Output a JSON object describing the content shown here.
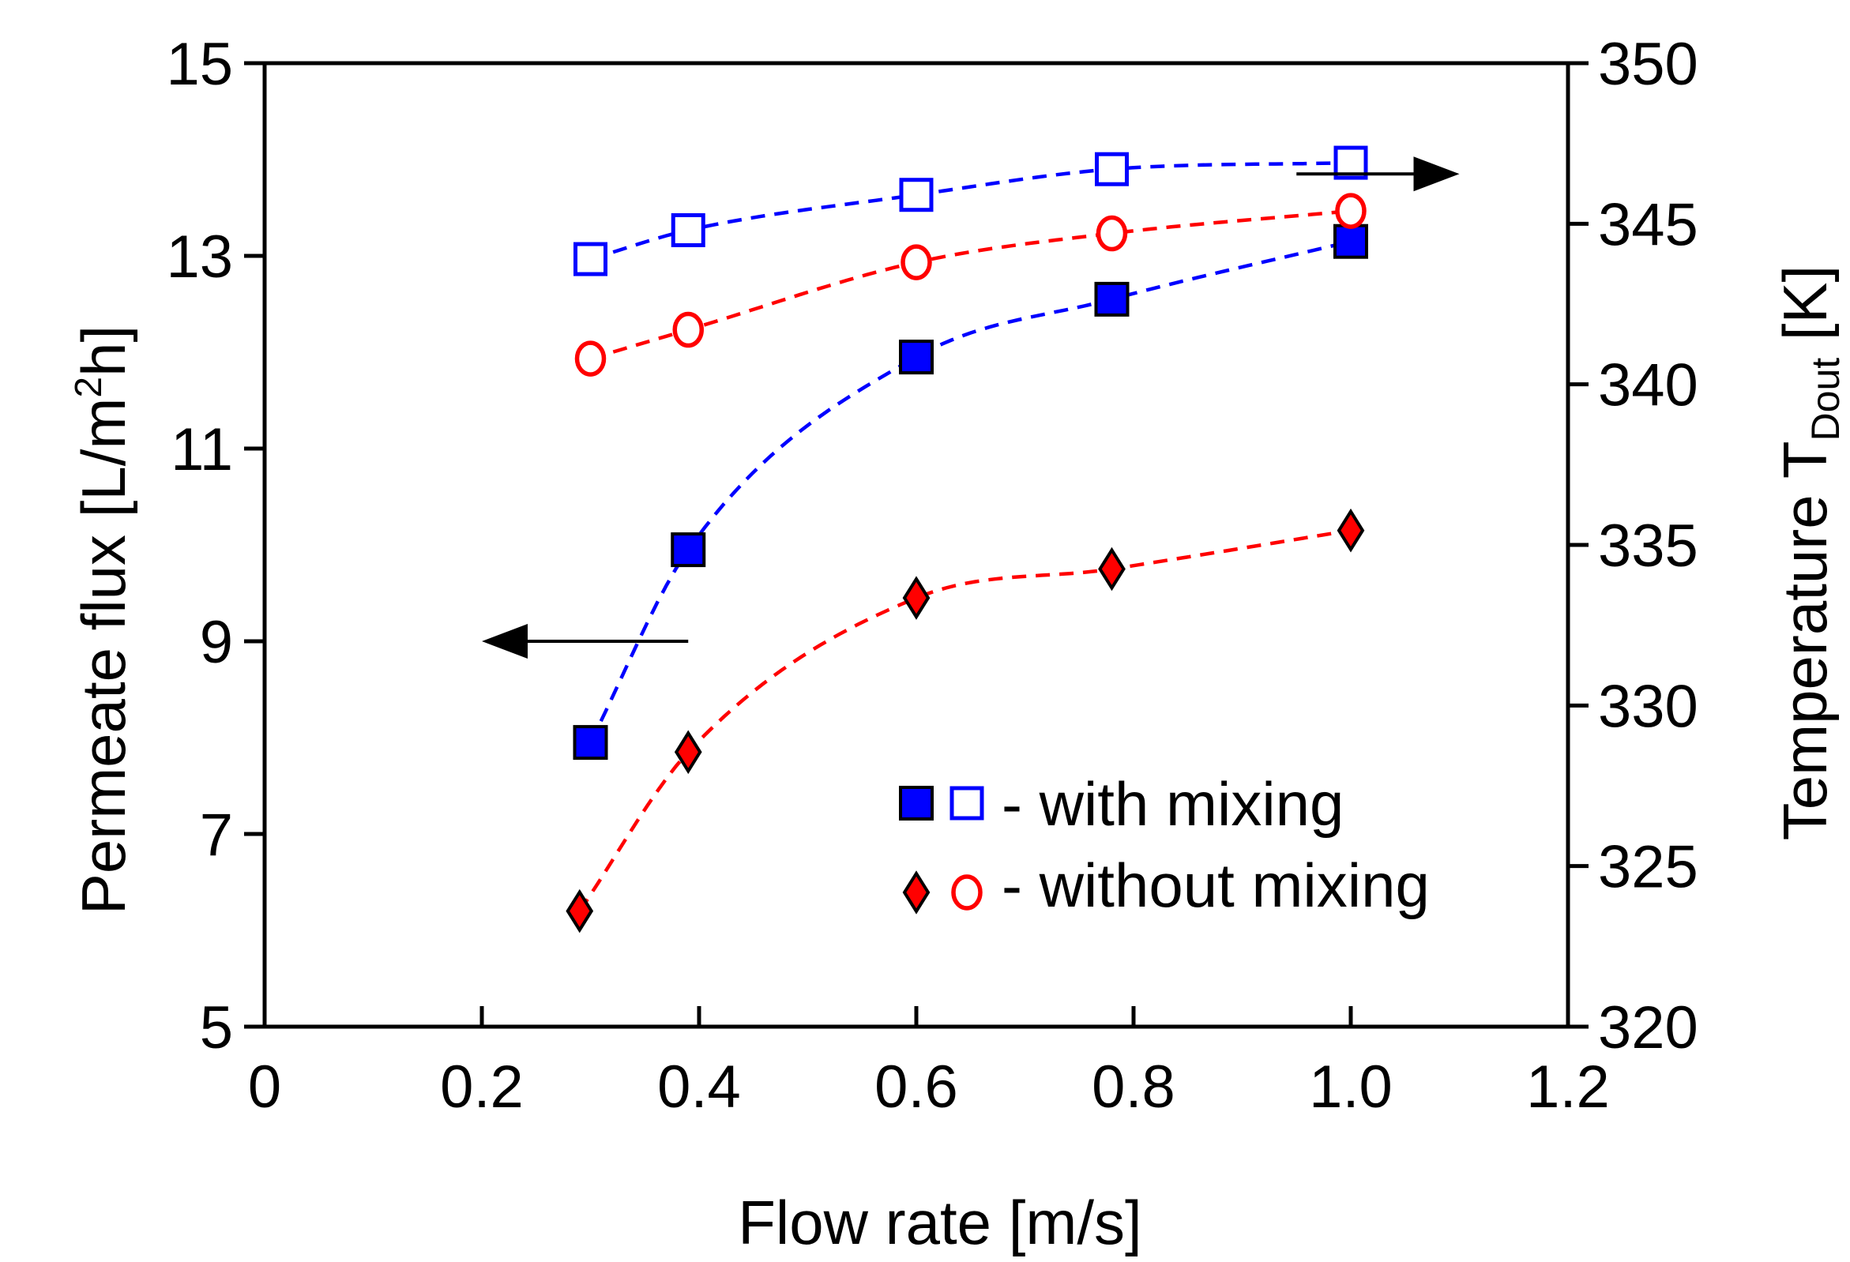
{
  "chart_data": {
    "type": "scatter",
    "xlabel": "Flow rate [m/s]",
    "ylabel_left": {
      "text": "Permeate flux [L/m",
      "sup": "2",
      "tail": "h]"
    },
    "ylabel_right": {
      "text": "Temperature T",
      "sub": "Dout",
      "tail": " [K]"
    },
    "xlim": [
      0,
      1.2
    ],
    "ylim_left": [
      5,
      15
    ],
    "ylim_right": [
      320,
      350
    ],
    "x_ticks": [
      "0",
      "0.2",
      "0.4",
      "0.6",
      "0.8",
      "1.0",
      "1.2"
    ],
    "x_tick_values": [
      0,
      0.2,
      0.4,
      0.6,
      0.8,
      1.0,
      1.2
    ],
    "y_left_ticks": [
      "5",
      "7",
      "9",
      "11",
      "13",
      "15"
    ],
    "y_left_tick_values": [
      5,
      7,
      9,
      11,
      13,
      15
    ],
    "y_right_ticks": [
      "320",
      "325",
      "330",
      "335",
      "340",
      "345",
      "350"
    ],
    "y_right_tick_values": [
      320,
      325,
      330,
      335,
      340,
      345,
      350
    ],
    "grid": false,
    "series": [
      {
        "name": "flux with mixing",
        "axis": "left",
        "marker": "square-filled",
        "color": "#0000ff",
        "x": [
          0.3,
          0.39,
          0.6,
          0.78,
          1.0
        ],
        "y": [
          7.95,
          9.95,
          11.95,
          12.55,
          13.15
        ]
      },
      {
        "name": "flux without mixing",
        "axis": "left",
        "marker": "diamond-filled",
        "color": "#ff0000",
        "x": [
          0.29,
          0.39,
          0.6,
          0.78,
          1.0
        ],
        "y": [
          6.2,
          7.85,
          9.45,
          9.75,
          10.15
        ]
      },
      {
        "name": "temperature with mixing",
        "axis": "right",
        "marker": "square-open",
        "color": "#0000ff",
        "x": [
          0.3,
          0.39,
          0.6,
          0.78,
          1.0
        ],
        "y": [
          343.9,
          344.8,
          345.9,
          346.7,
          346.9
        ]
      },
      {
        "name": "temperature without mixing",
        "axis": "right",
        "marker": "circle-open",
        "color": "#ff0000",
        "x": [
          0.3,
          0.39,
          0.6,
          0.78,
          1.0
        ],
        "y": [
          340.8,
          341.7,
          343.8,
          344.7,
          345.4
        ]
      }
    ],
    "trendlines": [
      {
        "series": "flux with mixing",
        "color": "#0000ff",
        "x_range": [
          0.3,
          1.0
        ]
      },
      {
        "series": "flux without mixing",
        "color": "#ff0000",
        "x_range": [
          0.29,
          1.0
        ]
      },
      {
        "series": "temperature with mixing",
        "color": "#0000ff",
        "x_range": [
          0.3,
          1.0
        ]
      },
      {
        "series": "temperature without mixing",
        "color": "#ff0000",
        "x_range": [
          0.3,
          1.0
        ]
      }
    ],
    "annotations": [
      {
        "type": "arrow",
        "direction": "left",
        "meaning": "left axis",
        "x_from": 0.39,
        "x_to": 0.2,
        "y_left": 9.0
      },
      {
        "type": "arrow",
        "direction": "right",
        "meaning": "right axis",
        "x_from": 0.95,
        "x_to": 1.1,
        "y_left": 13.85
      }
    ],
    "legend": {
      "position": "bottom-right",
      "entries": [
        {
          "label": "- with mixing",
          "markers": [
            "square-filled",
            "square-open"
          ],
          "color": "#0000ff"
        },
        {
          "label": "- without mixing",
          "markers": [
            "diamond-filled",
            "circle-open"
          ],
          "color": "#ff0000"
        }
      ]
    }
  }
}
